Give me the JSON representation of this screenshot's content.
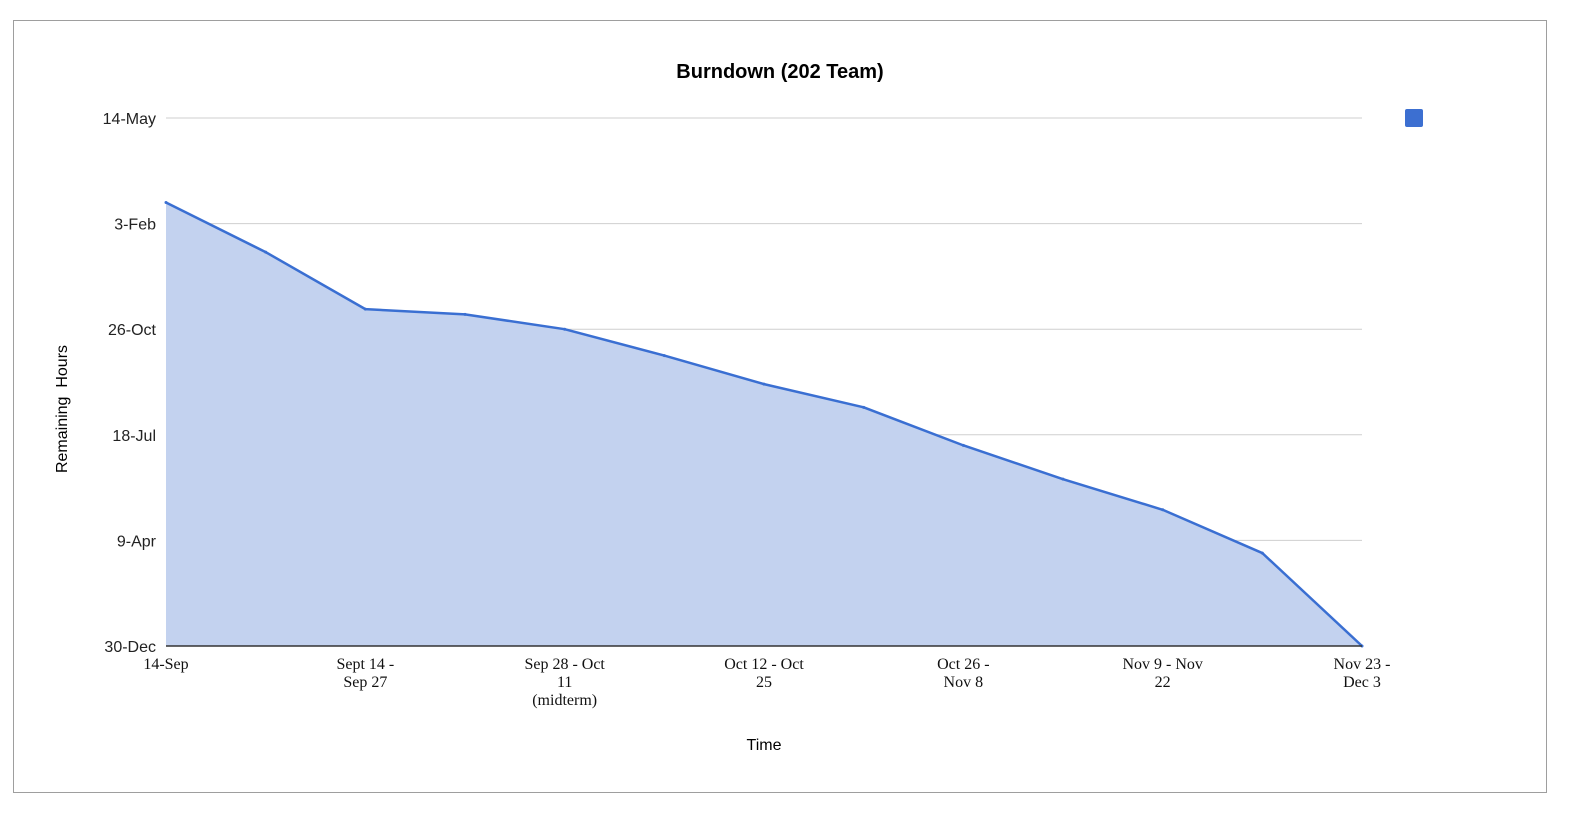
{
  "chart_data": {
    "type": "area",
    "title": "Burndown (202 Team)",
    "xlabel": "Time",
    "ylabel": "Remaining  Hours",
    "y_tick_labels": [
      "30-Dec",
      "9-Apr",
      "18-Jul",
      "26-Oct",
      "3-Feb",
      "14-May"
    ],
    "ylim": [
      0,
      500
    ],
    "x_tick_labels": [
      [
        "14-Sep"
      ],
      [
        "Sept 14 -",
        "Sep 27"
      ],
      [
        "Sep 28 - Oct",
        "11",
        "(midterm)"
      ],
      [
        "Oct 12 - Oct",
        "25"
      ],
      [
        "Oct 26 -",
        "Nov 8"
      ],
      [
        "Nov 9 - Nov",
        "22"
      ],
      [
        "Nov 23 -",
        "Dec 3"
      ]
    ],
    "x": [
      0,
      1,
      2,
      3,
      4,
      5,
      6,
      7,
      8,
      9,
      10,
      11,
      12
    ],
    "values": [
      420,
      373,
      319,
      314,
      300,
      275,
      248,
      226,
      190,
      158,
      129,
      88,
      0
    ],
    "grid": true,
    "legend": "top-right",
    "colors": {
      "line": "#3a6fd2",
      "fill": "#c3d2ef",
      "legend_swatch": "#3c6fd1",
      "grid": "#cfcfcf",
      "axis": "#333333",
      "frame": "#9e9e9e"
    }
  }
}
